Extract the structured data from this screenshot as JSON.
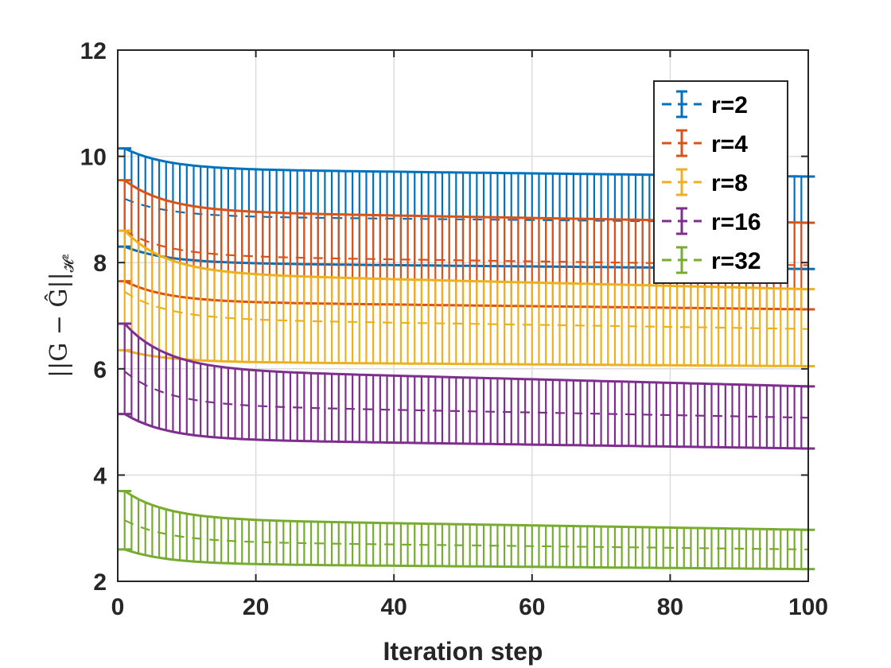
{
  "chart_data": {
    "type": "line",
    "subtype": "errorbar",
    "title": "",
    "xlabel": "Iteration step",
    "ylabel": "||G − Ĝ||",
    "ylabel_subscript": "𝓗²",
    "xlim": [
      0,
      100
    ],
    "ylim": [
      2,
      12
    ],
    "xticks": [
      0,
      20,
      40,
      60,
      80,
      100
    ],
    "yticks": [
      2,
      4,
      6,
      8,
      10,
      12
    ],
    "grid": true,
    "legend_position": "top-right",
    "x_samples": "1 to 100 (every iteration)",
    "series": [
      {
        "name": "r=2",
        "color": "#0072BD",
        "start_mean": 9.2,
        "end_mean": 8.75,
        "start_upper": 10.15,
        "end_upper": 9.62,
        "start_lower": 8.3,
        "end_lower": 7.88
      },
      {
        "name": "r=4",
        "color": "#D95319",
        "start_mean": 8.6,
        "end_mean": 7.95,
        "start_upper": 9.55,
        "end_upper": 8.75,
        "start_lower": 7.65,
        "end_lower": 7.12
      },
      {
        "name": "r=8",
        "color": "#EDB120",
        "start_mean": 7.45,
        "end_mean": 6.75,
        "start_upper": 8.6,
        "end_upper": 7.5,
        "start_lower": 6.35,
        "end_lower": 6.05
      },
      {
        "name": "r=16",
        "color": "#7E2F8E",
        "start_mean": 5.95,
        "end_mean": 5.08,
        "start_upper": 6.85,
        "end_upper": 5.67,
        "start_lower": 5.15,
        "end_lower": 4.5
      },
      {
        "name": "r=32",
        "color": "#77AC30",
        "start_mean": 3.15,
        "end_mean": 2.6,
        "start_upper": 3.7,
        "end_upper": 2.97,
        "start_lower": 2.6,
        "end_lower": 2.23
      }
    ]
  }
}
